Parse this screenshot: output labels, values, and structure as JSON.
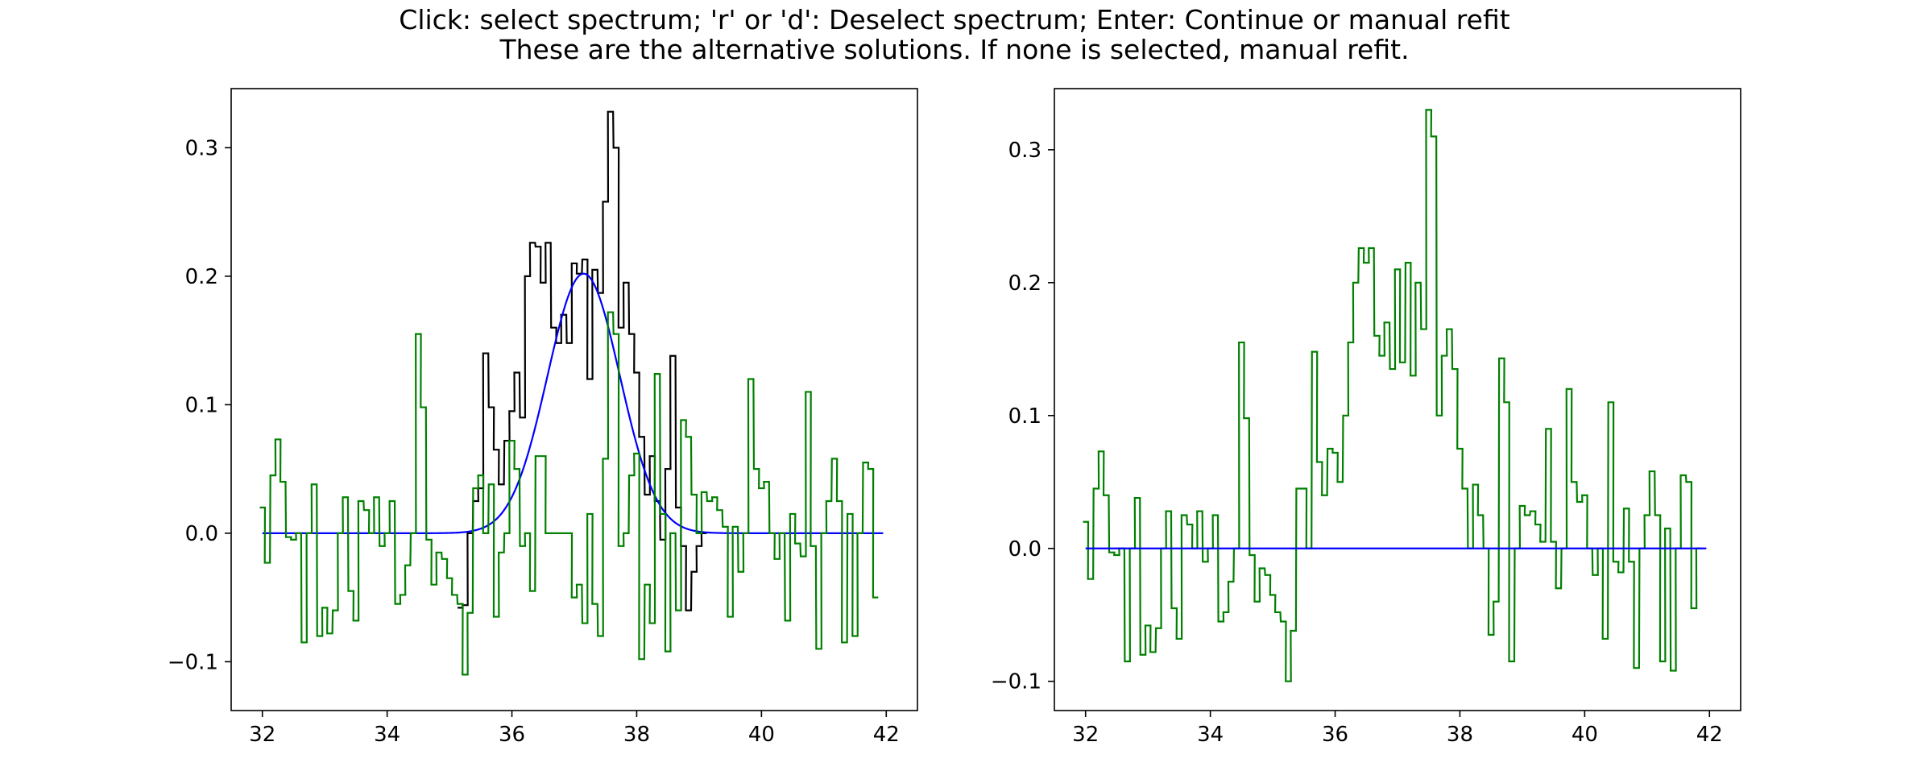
{
  "figure": {
    "title_lines": [
      "Click: select spectrum; 'r' or 'd': Deselect spectrum; Enter: Continue or manual refit",
      "These are the alternative solutions.  If none is selected, manual refit."
    ]
  },
  "colors": {
    "data": "#000000",
    "fit": "#0000ff",
    "residual": "#008000",
    "axes": "#000000"
  },
  "chart_data": [
    {
      "type": "line",
      "name": "left-panel",
      "xlim": [
        31.5,
        42.5
      ],
      "ylim": [
        -0.138,
        0.346
      ],
      "xticks": [
        "32",
        "34",
        "36",
        "38",
        "40",
        "42"
      ],
      "yticks": [
        "−0.1",
        "0.0",
        "0.1",
        "0.2",
        "0.3"
      ],
      "ytick_values": [
        -0.1,
        0.0,
        0.1,
        0.2,
        0.3
      ],
      "grid": false,
      "series": [
        {
          "role": "data",
          "style": "steps",
          "color": "#000000",
          "x": [
            35.17,
            35.25,
            35.33,
            35.42,
            35.5,
            35.58,
            35.67,
            35.75,
            35.83,
            35.92,
            36.0,
            36.08,
            36.17,
            36.25,
            36.33,
            36.42,
            36.5,
            36.58,
            36.67,
            36.75,
            36.83,
            36.92,
            37.0,
            37.08,
            37.17,
            37.25,
            37.33,
            37.42,
            37.5,
            37.58,
            37.67,
            37.75,
            37.83,
            37.92,
            38.0,
            38.08,
            38.17,
            38.25,
            38.33,
            38.42,
            38.5,
            38.58,
            38.67,
            38.75,
            38.83,
            38.92,
            39.0,
            39.08
          ],
          "y": [
            -0.058,
            -0.056,
            0.0,
            0.025,
            0.035,
            0.14,
            0.098,
            0.065,
            0.038,
            0.072,
            0.095,
            0.125,
            0.09,
            0.2,
            0.226,
            0.223,
            0.195,
            0.226,
            0.16,
            0.148,
            0.17,
            0.148,
            0.21,
            0.202,
            0.213,
            0.12,
            0.205,
            0.187,
            0.258,
            0.328,
            0.3,
            0.16,
            0.195,
            0.155,
            0.125,
            0.075,
            0.03,
            0.06,
            0.025,
            -0.005,
            0.05,
            0.138,
            0.02,
            -0.01,
            -0.06,
            -0.03,
            -0.01,
            0.0
          ]
        },
        {
          "role": "fit",
          "style": "line",
          "color": "#0000ff",
          "model": {
            "type": "gaussian",
            "amplitude": 0.202,
            "center": 37.15,
            "sigma": 0.58
          },
          "x_range": [
            32.0,
            41.95
          ]
        },
        {
          "role": "residual",
          "style": "steps",
          "color": "#008000",
          "x": [
            32.0,
            32.08,
            32.17,
            32.25,
            32.33,
            32.42,
            32.5,
            32.58,
            32.67,
            32.75,
            32.83,
            32.92,
            33.0,
            33.08,
            33.17,
            33.25,
            33.33,
            33.42,
            33.5,
            33.58,
            33.67,
            33.75,
            33.83,
            33.92,
            34.0,
            34.08,
            34.17,
            34.25,
            34.33,
            34.42,
            34.5,
            34.58,
            34.67,
            34.75,
            34.83,
            34.92,
            35.0,
            35.08,
            35.17,
            35.25,
            35.33,
            35.42,
            35.5,
            35.58,
            35.67,
            35.75,
            35.83,
            35.92,
            36.0,
            36.08,
            36.17,
            36.25,
            36.33,
            36.42,
            36.5,
            36.58,
            36.67,
            36.75,
            36.83,
            36.92,
            37.0,
            37.08,
            37.17,
            37.25,
            37.33,
            37.42,
            37.5,
            37.58,
            37.67,
            37.75,
            37.83,
            37.92,
            38.0,
            38.08,
            38.17,
            38.25,
            38.33,
            38.42,
            38.5,
            38.58,
            38.67,
            38.75,
            38.83,
            38.92,
            39.0,
            39.08,
            39.17,
            39.25,
            39.33,
            39.42,
            39.5,
            39.58,
            39.67,
            39.75,
            39.83,
            39.92,
            40.0,
            40.08,
            40.17,
            40.25,
            40.33,
            40.42,
            40.5,
            40.58,
            40.67,
            40.75,
            40.83,
            40.92,
            41.0,
            41.08,
            41.17,
            41.25,
            41.33,
            41.42,
            41.5,
            41.58,
            41.67,
            41.75,
            41.83
          ],
          "y": [
            0.02,
            -0.023,
            0.045,
            0.073,
            0.04,
            -0.003,
            -0.005,
            0.0,
            -0.085,
            0.0,
            0.038,
            -0.08,
            -0.058,
            -0.078,
            -0.06,
            0.0,
            0.028,
            -0.045,
            -0.068,
            0.025,
            0.018,
            0.0,
            0.028,
            -0.01,
            0.0,
            0.025,
            -0.055,
            -0.048,
            -0.025,
            0.0,
            0.155,
            0.098,
            -0.005,
            -0.04,
            -0.015,
            -0.02,
            -0.035,
            -0.048,
            -0.055,
            -0.11,
            -0.062,
            0.035,
            0.045,
            0.0,
            0.038,
            -0.065,
            -0.015,
            0.0,
            0.072,
            0.05,
            -0.01,
            0.0,
            -0.045,
            0.06,
            0.06,
            0.0,
            0.0,
            0.0,
            0.0,
            0.0,
            -0.05,
            -0.04,
            -0.07,
            0.015,
            -0.055,
            -0.08,
            0.058,
            0.172,
            0.155,
            -0.01,
            0.0,
            0.045,
            0.062,
            -0.098,
            -0.04,
            -0.07,
            0.124,
            0.015,
            -0.092,
            0.0,
            -0.06,
            0.088,
            0.075,
            0.03,
            0.0,
            0.032,
            0.025,
            0.028,
            0.018,
            0.005,
            -0.065,
            0.005,
            -0.03,
            0.0,
            0.12,
            0.05,
            0.035,
            0.04,
            0.0,
            -0.02,
            0.0,
            -0.068,
            0.015,
            -0.008,
            -0.018,
            0.11,
            -0.01,
            -0.09,
            0.0,
            0.025,
            0.058,
            0.025,
            -0.085,
            0.015,
            -0.08,
            0.0,
            0.055,
            0.05,
            -0.05
          ]
        }
      ]
    },
    {
      "type": "line",
      "name": "right-panel",
      "xlim": [
        31.5,
        42.5
      ],
      "ylim": [
        -0.122,
        0.346
      ],
      "xticks": [
        "32",
        "34",
        "36",
        "38",
        "40",
        "42"
      ],
      "yticks": [
        "−0.1",
        "0.0",
        "0.1",
        "0.2",
        "0.3"
      ],
      "ytick_values": [
        -0.1,
        0.0,
        0.1,
        0.2,
        0.3
      ],
      "grid": false,
      "series": [
        {
          "role": "residual",
          "style": "steps",
          "color": "#008000",
          "x": [
            32.0,
            32.08,
            32.17,
            32.25,
            32.33,
            32.42,
            32.5,
            32.58,
            32.67,
            32.75,
            32.83,
            32.92,
            33.0,
            33.08,
            33.17,
            33.25,
            33.33,
            33.42,
            33.5,
            33.58,
            33.67,
            33.75,
            33.83,
            33.92,
            34.0,
            34.08,
            34.17,
            34.25,
            34.33,
            34.42,
            34.5,
            34.58,
            34.67,
            34.75,
            34.83,
            34.92,
            35.0,
            35.08,
            35.17,
            35.25,
            35.33,
            35.42,
            35.5,
            35.58,
            35.67,
            35.75,
            35.83,
            35.92,
            36.0,
            36.08,
            36.17,
            36.25,
            36.33,
            36.42,
            36.5,
            36.58,
            36.67,
            36.75,
            36.83,
            36.92,
            37.0,
            37.08,
            37.17,
            37.25,
            37.33,
            37.42,
            37.5,
            37.58,
            37.67,
            37.75,
            37.83,
            37.92,
            38.0,
            38.08,
            38.17,
            38.25,
            38.33,
            38.42,
            38.5,
            38.58,
            38.67,
            38.75,
            38.83,
            38.92,
            39.0,
            39.08,
            39.17,
            39.25,
            39.33,
            39.42,
            39.5,
            39.58,
            39.67,
            39.75,
            39.83,
            39.92,
            40.0,
            40.08,
            40.17,
            40.25,
            40.33,
            40.42,
            40.5,
            40.58,
            40.67,
            40.75,
            40.83,
            40.92,
            41.0,
            41.08,
            41.17,
            41.25,
            41.33,
            41.42,
            41.5,
            41.58,
            41.67,
            41.75,
            41.83
          ],
          "y": [
            0.02,
            -0.023,
            0.045,
            0.073,
            0.04,
            -0.003,
            -0.005,
            0.0,
            -0.085,
            0.0,
            0.038,
            -0.08,
            -0.058,
            -0.078,
            -0.06,
            0.0,
            0.028,
            -0.045,
            -0.068,
            0.025,
            0.018,
            0.0,
            0.028,
            -0.01,
            0.0,
            0.025,
            -0.055,
            -0.048,
            -0.025,
            0.0,
            0.155,
            0.098,
            -0.005,
            -0.04,
            -0.015,
            -0.02,
            -0.035,
            -0.048,
            -0.055,
            -0.1,
            -0.062,
            0.045,
            0.045,
            0.0,
            0.148,
            0.065,
            0.04,
            0.075,
            0.072,
            0.05,
            0.1,
            0.155,
            0.2,
            0.226,
            0.215,
            0.226,
            0.16,
            0.145,
            0.17,
            0.135,
            0.21,
            0.14,
            0.215,
            0.13,
            0.2,
            0.165,
            0.33,
            0.31,
            0.1,
            0.145,
            0.165,
            0.135,
            0.075,
            0.045,
            0.0,
            0.048,
            0.025,
            0.0,
            -0.065,
            -0.04,
            0.143,
            0.11,
            -0.085,
            0.0,
            0.032,
            0.025,
            0.028,
            0.018,
            0.005,
            0.09,
            0.005,
            -0.03,
            0.0,
            0.12,
            0.05,
            0.035,
            0.04,
            0.0,
            -0.02,
            0.0,
            -0.068,
            0.11,
            -0.01,
            -0.018,
            0.03,
            -0.01,
            -0.09,
            0.0,
            0.025,
            0.058,
            0.025,
            -0.085,
            0.015,
            -0.092,
            0.0,
            0.055,
            0.05,
            -0.045,
            0.0
          ]
        },
        {
          "role": "fit",
          "style": "line",
          "color": "#0000ff",
          "model": {
            "type": "constant",
            "value": 0.0
          },
          "x_range": [
            32.0,
            41.95
          ]
        }
      ]
    }
  ]
}
